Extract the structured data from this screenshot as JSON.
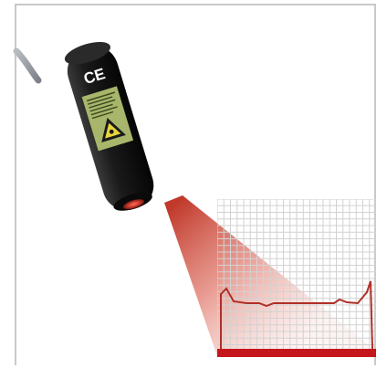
{
  "image": {
    "caption": "",
    "colors": {
      "sensor_body": "#111111",
      "beam": "#c0392b",
      "beam_light": "#f6c4bc",
      "grid_line": "#d2d2d2",
      "profile_line": "#b03028",
      "base_bar": "#c4161c",
      "label_green": "#a7b66a"
    },
    "label": {
      "ce_mark": "CE"
    }
  }
}
